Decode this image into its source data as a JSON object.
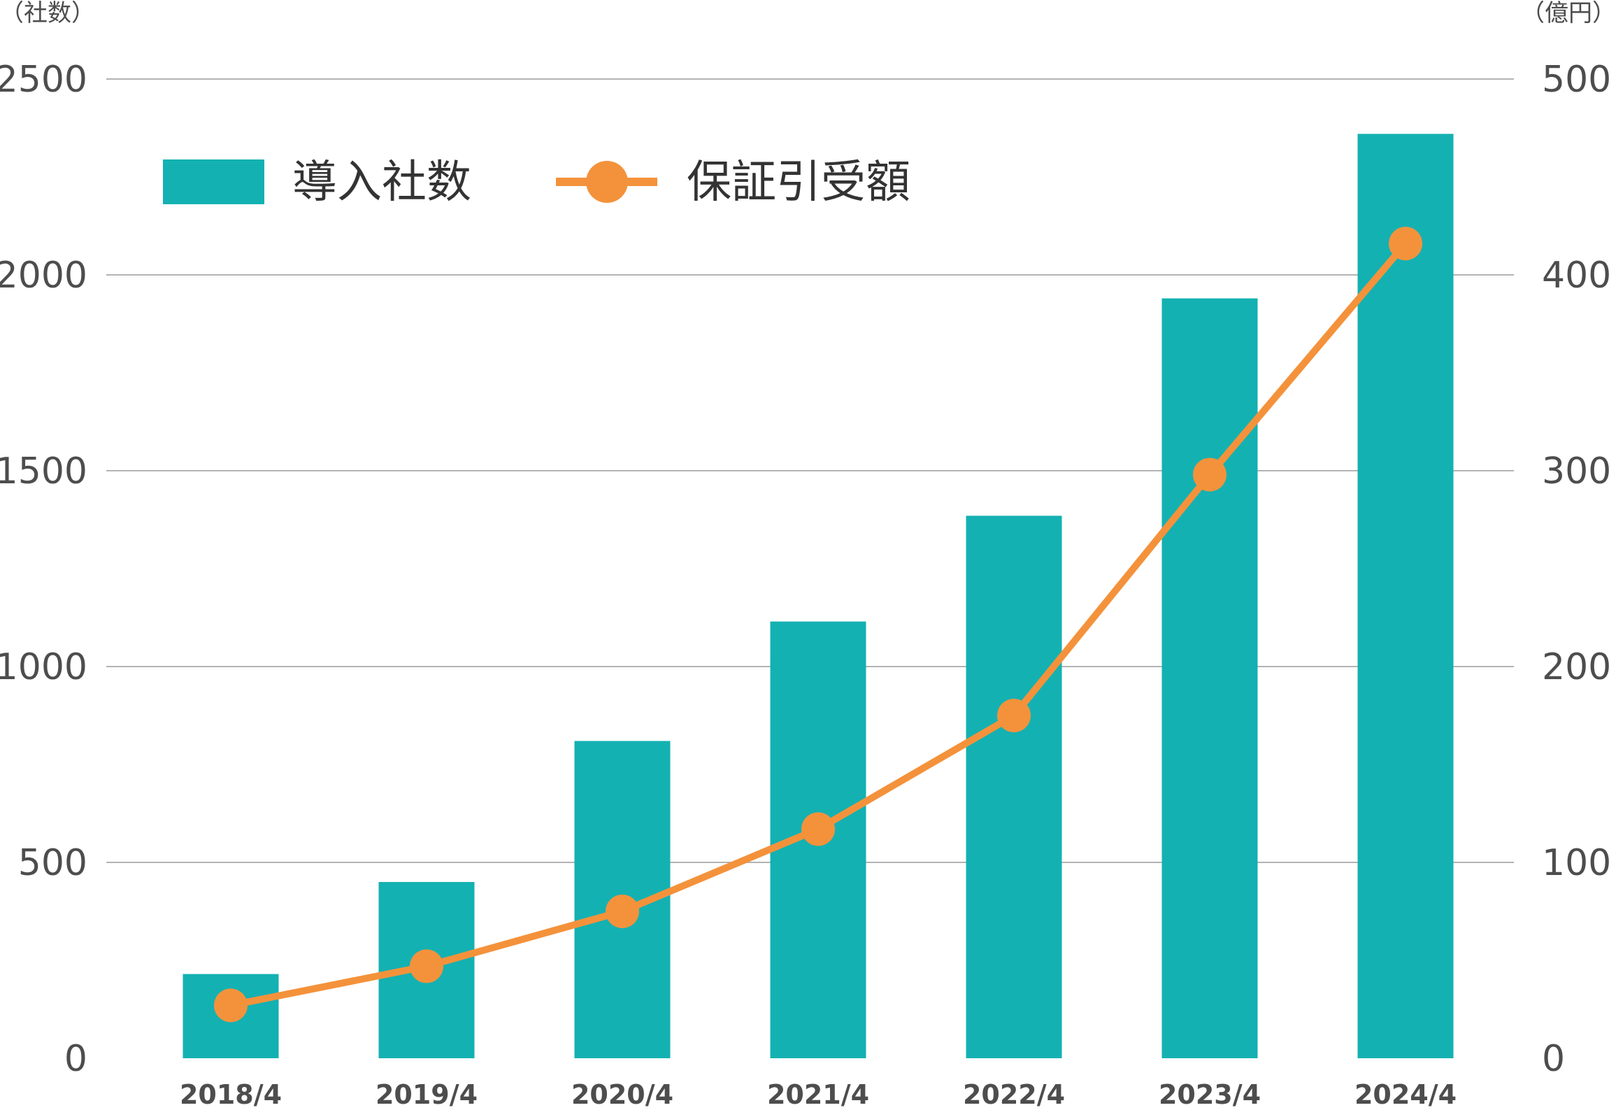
{
  "chart_data": {
    "type": "bar",
    "categories": [
      "2018/4",
      "2019/4",
      "2020/4",
      "2021/4",
      "2022/4",
      "2023/4",
      "2024/4"
    ],
    "series": [
      {
        "name": "導入社数",
        "type": "bar",
        "axis": "left",
        "color": "#14b1b2",
        "values": [
          215,
          450,
          810,
          1115,
          1385,
          1940,
          2360
        ]
      },
      {
        "name": "保証引受額",
        "type": "line",
        "axis": "right",
        "color": "#f4923b",
        "values": [
          27,
          47,
          75,
          117,
          175,
          298,
          416
        ]
      }
    ],
    "y_left": {
      "unit": "（社数）",
      "min": 0,
      "max": 2500,
      "ticks": [
        0,
        500,
        1000,
        1500,
        2000,
        2500
      ]
    },
    "y_right": {
      "unit": "（億円）",
      "min": 0,
      "max": 500,
      "ticks": [
        0,
        100,
        200,
        300,
        400,
        500
      ]
    },
    "grid": true,
    "legend_position": "top-left"
  }
}
